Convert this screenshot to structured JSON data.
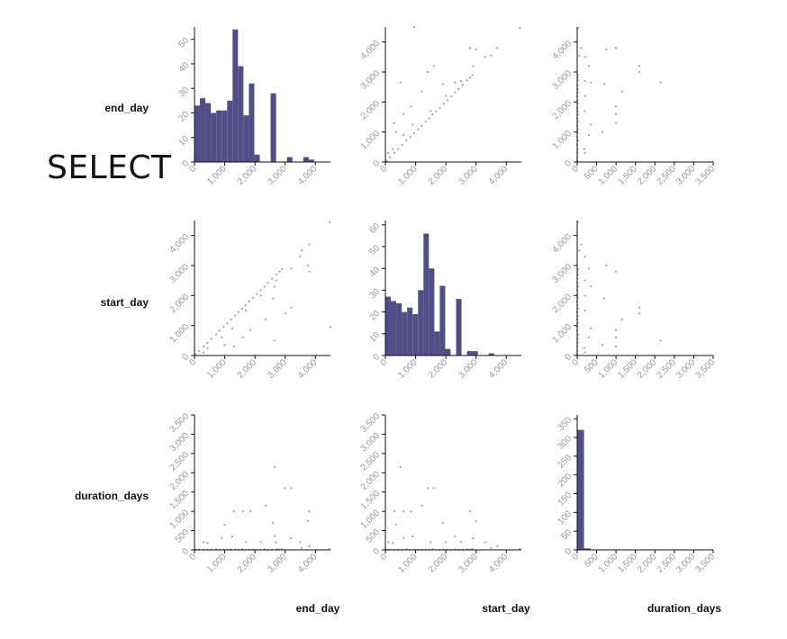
{
  "page": {
    "select_label": "SELECT"
  },
  "variables": [
    "end_day",
    "start_day",
    "duration_days"
  ],
  "colors": {
    "bar": "#514d87",
    "point": "#514d87",
    "axis": "#111111",
    "tick_label": "#999999"
  },
  "chart_data": {
    "type": "scatter",
    "layout": "scatter-matrix 3x3, histograms on diagonal",
    "row_labels": [
      "end_day",
      "start_day",
      "duration_days"
    ],
    "column_labels": [
      "end_day",
      "start_day",
      "duration_days"
    ],
    "axes": {
      "end_day": {
        "range": [
          0,
          4500
        ],
        "ticks": [
          0,
          1000,
          2000,
          3000,
          4000
        ],
        "tick_labels": [
          "0",
          "1,000",
          "2,000",
          "3,000",
          "4,000"
        ]
      },
      "start_day": {
        "range": [
          0,
          4500
        ],
        "ticks": [
          0,
          1000,
          2000,
          3000,
          4000
        ],
        "tick_labels": [
          "0",
          "1,000",
          "2,000",
          "3,000",
          "4,000"
        ]
      },
      "duration_days": {
        "range": [
          0,
          3500
        ],
        "ticks": [
          0,
          500,
          1000,
          1500,
          2000,
          2500,
          3000,
          3500
        ],
        "tick_labels": [
          "0",
          "500",
          "1,000",
          "1,500",
          "2,000",
          "2,500",
          "3,000",
          "3,500"
        ]
      }
    },
    "histograms": {
      "end_day": {
        "bin_edges": [
          0,
          180,
          360,
          540,
          720,
          900,
          1080,
          1260,
          1440,
          1620,
          1800,
          1980,
          2160,
          2340,
          2520,
          2700,
          2880,
          3060,
          3240,
          3420,
          3600,
          3780,
          3960,
          4140
        ],
        "counts": [
          23,
          26,
          24,
          20,
          21,
          21,
          25,
          54,
          39,
          19,
          32,
          3,
          0,
          0,
          28,
          0,
          0,
          2,
          0,
          0,
          2,
          1,
          0
        ],
        "y_range": [
          0,
          55
        ],
        "y_ticks": [
          0,
          10,
          20,
          30,
          40,
          50
        ],
        "y_tick_labels": [
          "0",
          "10",
          "20",
          "30",
          "40",
          "50"
        ]
      },
      "start_day": {
        "bin_edges": [
          0,
          180,
          360,
          540,
          720,
          900,
          1080,
          1260,
          1440,
          1620,
          1800,
          1980,
          2160,
          2340,
          2520,
          2700,
          2880,
          3060,
          3240,
          3420,
          3600,
          3780,
          3960,
          4140
        ],
        "counts": [
          27,
          25,
          24,
          20,
          22,
          19,
          30,
          56,
          40,
          11,
          32,
          3,
          0,
          26,
          0,
          2,
          2,
          0,
          0,
          1,
          0,
          0,
          0
        ],
        "y_range": [
          0,
          62
        ],
        "y_ticks": [
          0,
          10,
          20,
          30,
          40,
          50,
          60
        ],
        "y_tick_labels": [
          "0",
          "10",
          "20",
          "30",
          "40",
          "50",
          "60"
        ]
      },
      "duration_days": {
        "bin_edges": [
          0,
          175,
          350,
          525,
          700,
          875,
          1050,
          1225,
          1400,
          1575,
          1750,
          1925,
          2100,
          2275,
          2450,
          2625,
          2800,
          2975,
          3150,
          3325,
          3500
        ],
        "counts": [
          320,
          4,
          0,
          0,
          0,
          0,
          0,
          0,
          0,
          0,
          0,
          0,
          0,
          0,
          0,
          0,
          0,
          0,
          0,
          0
        ],
        "y_range": [
          0,
          360
        ],
        "y_ticks": [
          0,
          50,
          100,
          150,
          200,
          250,
          300,
          350
        ],
        "y_tick_labels": [
          "0",
          "50",
          "100",
          "150",
          "200",
          "250",
          "300",
          "350"
        ]
      }
    },
    "records": [
      {
        "start_day": 40,
        "end_day": 42,
        "duration_days": 2
      },
      {
        "start_day": 150,
        "end_day": 155,
        "duration_days": 5
      },
      {
        "start_day": 300,
        "end_day": 305,
        "duration_days": 5
      },
      {
        "start_day": 420,
        "end_day": 430,
        "duration_days": 10
      },
      {
        "start_day": 560,
        "end_day": 565,
        "duration_days": 5
      },
      {
        "start_day": 700,
        "end_day": 720,
        "duration_days": 20
      },
      {
        "start_day": 830,
        "end_day": 835,
        "duration_days": 5
      },
      {
        "start_day": 950,
        "end_day": 960,
        "duration_days": 10
      },
      {
        "start_day": 1080,
        "end_day": 1090,
        "duration_days": 10
      },
      {
        "start_day": 1200,
        "end_day": 1205,
        "duration_days": 5
      },
      {
        "start_day": 1330,
        "end_day": 1345,
        "duration_days": 15
      },
      {
        "start_day": 1450,
        "end_day": 1455,
        "duration_days": 5
      },
      {
        "start_day": 1560,
        "end_day": 1580,
        "duration_days": 20
      },
      {
        "start_day": 1680,
        "end_day": 1690,
        "duration_days": 10
      },
      {
        "start_day": 1800,
        "end_day": 1805,
        "duration_days": 5
      },
      {
        "start_day": 1930,
        "end_day": 1945,
        "duration_days": 15
      },
      {
        "start_day": 2050,
        "end_day": 2060,
        "duration_days": 10
      },
      {
        "start_day": 2180,
        "end_day": 2185,
        "duration_days": 5
      },
      {
        "start_day": 2300,
        "end_day": 2320,
        "duration_days": 20
      },
      {
        "start_day": 2420,
        "end_day": 2430,
        "duration_days": 10
      },
      {
        "start_day": 2560,
        "end_day": 2570,
        "duration_days": 10
      },
      {
        "start_day": 2700,
        "end_day": 2720,
        "duration_days": 20
      },
      {
        "start_day": 2800,
        "end_day": 2810,
        "duration_days": 10
      },
      {
        "start_day": 2880,
        "end_day": 2900,
        "duration_days": 20
      },
      {
        "start_day": 100,
        "end_day": 300,
        "duration_days": 200
      },
      {
        "start_day": 250,
        "end_day": 430,
        "duration_days": 180
      },
      {
        "start_day": 600,
        "end_day": 900,
        "duration_days": 300
      },
      {
        "start_day": 900,
        "end_day": 1250,
        "duration_days": 350
      },
      {
        "start_day": 1500,
        "end_day": 1700,
        "duration_days": 200
      },
      {
        "start_day": 2000,
        "end_day": 2200,
        "duration_days": 200
      },
      {
        "start_day": 2500,
        "end_day": 2700,
        "duration_days": 200
      },
      {
        "start_day": 2900,
        "end_day": 3200,
        "duration_days": 300
      },
      {
        "start_day": 3300,
        "end_day": 3500,
        "duration_days": 200
      },
      {
        "start_day": 3700,
        "end_day": 3800,
        "duration_days": 100
      },
      {
        "start_day": 600,
        "end_day": 1600,
        "duration_days": 1000
      },
      {
        "start_day": 300,
        "end_day": 1300,
        "duration_days": 1000
      },
      {
        "start_day": 850,
        "end_day": 1850,
        "duration_days": 1000
      },
      {
        "start_day": 350,
        "end_day": 1000,
        "duration_days": 650
      },
      {
        "start_day": 1900,
        "end_day": 2600,
        "duration_days": 700
      },
      {
        "start_day": 1200,
        "end_day": 2350,
        "duration_days": 1150
      },
      {
        "start_day": 1400,
        "end_day": 3000,
        "duration_days": 1600
      },
      {
        "start_day": 500,
        "end_day": 2650,
        "duration_days": 2150
      },
      {
        "start_day": 1600,
        "end_day": 3200,
        "duration_days": 1600
      },
      {
        "start_day": 2800,
        "end_day": 3800,
        "duration_days": 1000
      },
      {
        "start_day": 3000,
        "end_day": 3750,
        "duration_days": 750
      },
      {
        "start_day": 2300,
        "end_day": 2650,
        "duration_days": 350
      },
      {
        "start_day": 950,
        "end_day": 4500,
        "duration_days": 3550
      },
      {
        "start_day": 4450,
        "end_day": 4470,
        "duration_days": 20
      },
      {
        "start_day": 3500,
        "end_day": 3550,
        "duration_days": 50
      }
    ]
  }
}
